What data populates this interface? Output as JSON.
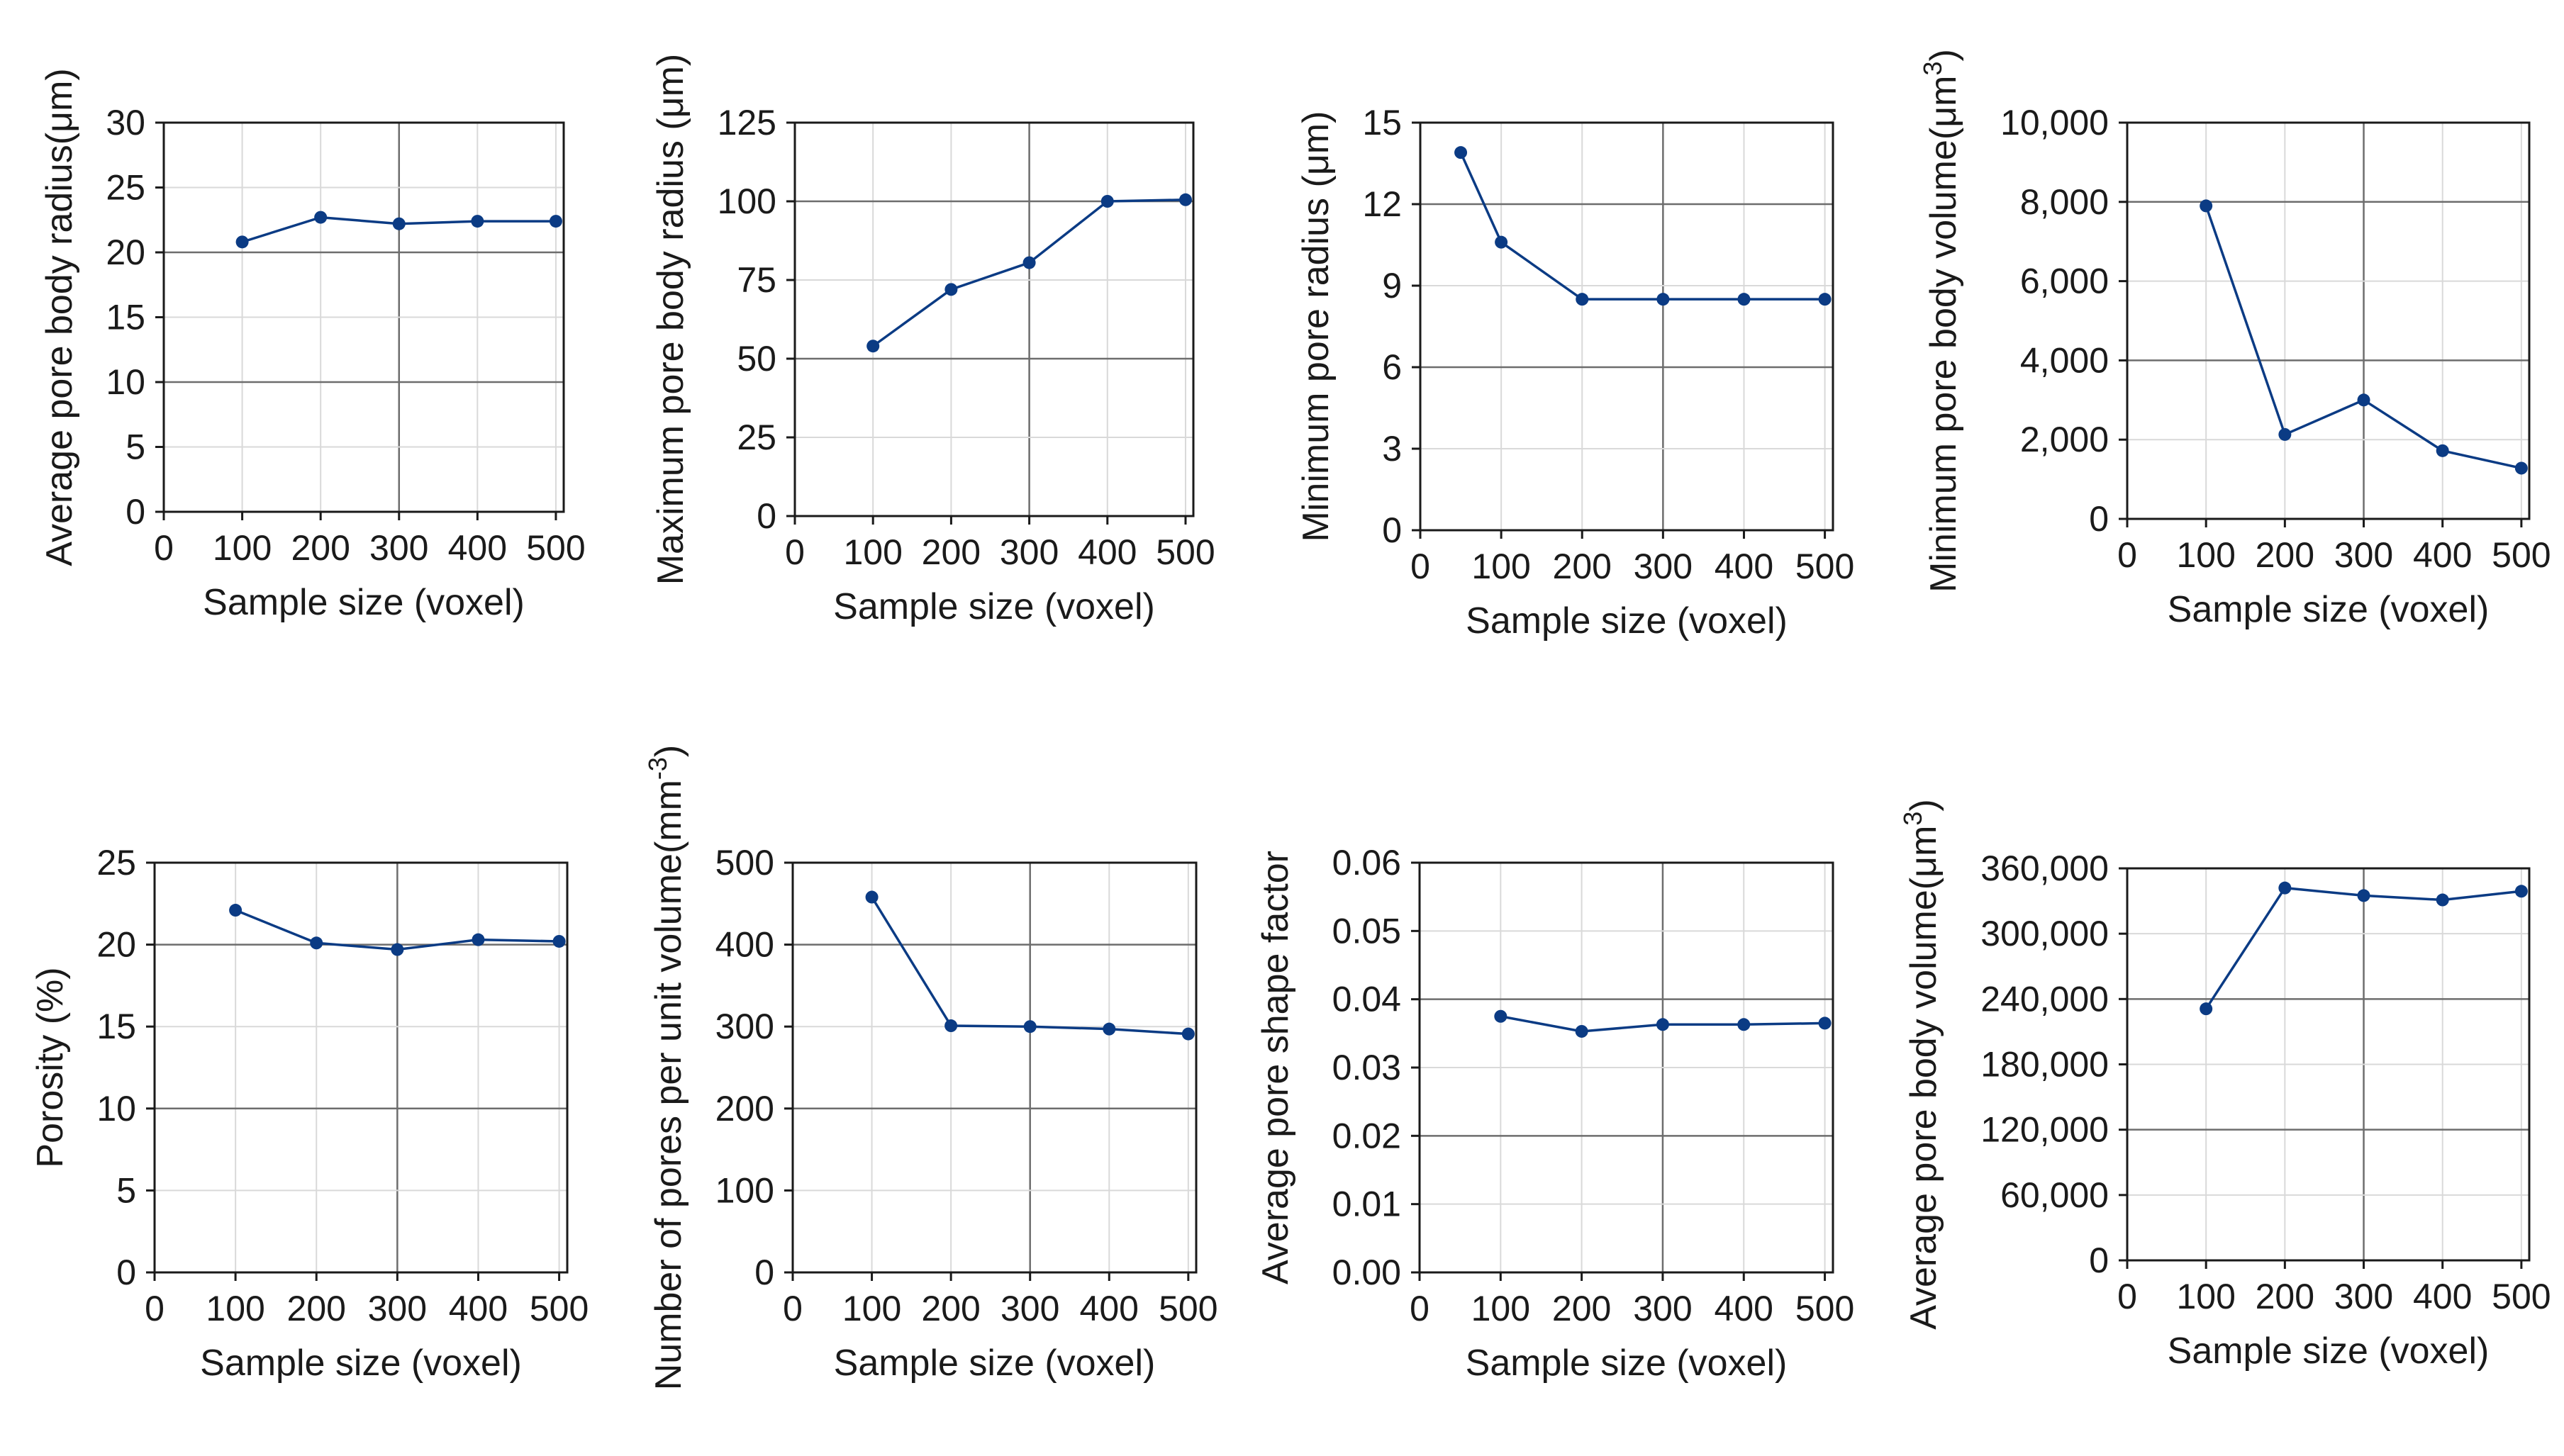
{
  "figure": {
    "description_free": true
  },
  "chart_data": [
    {
      "id": "avg-pore-body-radius",
      "type": "line",
      "title": "",
      "xlabel": "Sample size (voxel)",
      "ylabel": "Average pore body radius(μm)",
      "ylabel_sup": "",
      "ylabel_tail": "",
      "xlim": [
        0,
        510
      ],
      "ylim": [
        0,
        30
      ],
      "xticks": [
        0,
        100,
        200,
        300,
        400,
        500
      ],
      "xtick_labels": [
        "0",
        "100",
        "200",
        "300",
        "400",
        "500"
      ],
      "yticks": [
        0,
        5,
        10,
        15,
        20,
        25,
        30
      ],
      "ytick_labels": [
        "0",
        "5",
        "10",
        "15",
        "20",
        "25",
        "30"
      ],
      "series": [
        {
          "name": "Average pore body radius",
          "color": "#0b3b84",
          "x": [
            100,
            200,
            300,
            400,
            500
          ],
          "y": [
            20.8,
            22.7,
            22.2,
            22.4,
            22.4
          ]
        }
      ]
    },
    {
      "id": "max-pore-body-radius",
      "type": "line",
      "title": "",
      "xlabel": "Sample size (voxel)",
      "ylabel": "Maximum pore body radius (μm)",
      "ylabel_sup": "",
      "ylabel_tail": "",
      "xlim": [
        0,
        510
      ],
      "ylim": [
        0,
        125
      ],
      "xticks": [
        0,
        100,
        200,
        300,
        400,
        500
      ],
      "xtick_labels": [
        "0",
        "100",
        "200",
        "300",
        "400",
        "500"
      ],
      "yticks": [
        0,
        25,
        50,
        75,
        100,
        125
      ],
      "ytick_labels": [
        "0",
        "25",
        "50",
        "75",
        "100",
        "125"
      ],
      "series": [
        {
          "name": "Maximum pore body radius",
          "color": "#0b3b84",
          "x": [
            100,
            200,
            300,
            400,
            500
          ],
          "y": [
            54,
            72,
            80.5,
            100,
            100.5
          ]
        }
      ]
    },
    {
      "id": "min-pore-radius",
      "type": "line",
      "title": "",
      "xlabel": "Sample size (voxel)",
      "ylabel": "Minimum pore radius (μm)",
      "ylabel_sup": "",
      "ylabel_tail": "",
      "xlim": [
        0,
        510
      ],
      "ylim": [
        0,
        15
      ],
      "xticks": [
        0,
        100,
        200,
        300,
        400,
        500
      ],
      "xtick_labels": [
        "0",
        "100",
        "200",
        "300",
        "400",
        "500"
      ],
      "yticks": [
        0,
        3,
        6,
        9,
        12,
        15
      ],
      "ytick_labels": [
        "0",
        "3",
        "6",
        "9",
        "12",
        "15"
      ],
      "series": [
        {
          "name": "Minimum pore radius",
          "color": "#0b3b84",
          "x": [
            50,
            100,
            200,
            300,
            400,
            500
          ],
          "y": [
            13.9,
            10.6,
            8.5,
            8.5,
            8.5,
            8.5
          ]
        }
      ]
    },
    {
      "id": "min-pore-body-volume",
      "type": "line",
      "title": "",
      "xlabel": "Sample size (voxel)",
      "ylabel": "Minimum pore body volume(μm",
      "ylabel_sup": "3",
      "ylabel_tail": ")",
      "xlim": [
        0,
        510
      ],
      "ylim": [
        0,
        10000
      ],
      "xticks": [
        0,
        100,
        200,
        300,
        400,
        500
      ],
      "xtick_labels": [
        "0",
        "100",
        "200",
        "300",
        "400",
        "500"
      ],
      "yticks": [
        0,
        2000,
        4000,
        6000,
        8000,
        10000
      ],
      "ytick_labels": [
        "0",
        "2,000",
        "4,000",
        "6,000",
        "8,000",
        "10,000"
      ],
      "series": [
        {
          "name": "Minimum pore body volume",
          "color": "#0b3b84",
          "x": [
            100,
            200,
            300,
            400,
            500
          ],
          "y": [
            7900,
            2130,
            3000,
            1720,
            1280
          ]
        }
      ]
    },
    {
      "id": "porosity",
      "type": "line",
      "title": "",
      "xlabel": "Sample size (voxel)",
      "ylabel": "Porosity (%)",
      "ylabel_sup": "",
      "ylabel_tail": "",
      "xlim": [
        0,
        510
      ],
      "ylim": [
        0,
        25
      ],
      "xticks": [
        0,
        100,
        200,
        300,
        400,
        500
      ],
      "xtick_labels": [
        "0",
        "100",
        "200",
        "300",
        "400",
        "500"
      ],
      "yticks": [
        0,
        5,
        10,
        15,
        20,
        25
      ],
      "ytick_labels": [
        "0",
        "5",
        "10",
        "15",
        "20",
        "25"
      ],
      "series": [
        {
          "name": "Porosity",
          "color": "#0b3b84",
          "x": [
            100,
            200,
            300,
            400,
            500
          ],
          "y": [
            22.1,
            20.1,
            19.7,
            20.3,
            20.2
          ]
        }
      ]
    },
    {
      "id": "pores-per-unit-volume",
      "type": "line",
      "title": "",
      "xlabel": "Sample size (voxel)",
      "ylabel": "Number of pores per unit volume(mm",
      "ylabel_sup": "-3",
      "ylabel_tail": ")",
      "xlim": [
        0,
        510
      ],
      "ylim": [
        0,
        500
      ],
      "xticks": [
        0,
        100,
        200,
        300,
        400,
        500
      ],
      "xtick_labels": [
        "0",
        "100",
        "200",
        "300",
        "400",
        "500"
      ],
      "yticks": [
        0,
        100,
        200,
        300,
        400,
        500
      ],
      "ytick_labels": [
        "0",
        "100",
        "200",
        "300",
        "400",
        "500"
      ],
      "series": [
        {
          "name": "Number of pores per unit volume",
          "color": "#0b3b84",
          "x": [
            100,
            200,
            300,
            400,
            500
          ],
          "y": [
            458,
            301,
            300,
            297,
            291
          ]
        }
      ]
    },
    {
      "id": "avg-pore-shape-factor",
      "type": "line",
      "title": "",
      "xlabel": "Sample size (voxel)",
      "ylabel": "Average pore shape factor",
      "ylabel_sup": "",
      "ylabel_tail": "",
      "xlim": [
        0,
        510
      ],
      "ylim": [
        0,
        0.06
      ],
      "xticks": [
        0,
        100,
        200,
        300,
        400,
        500
      ],
      "xtick_labels": [
        "0",
        "100",
        "200",
        "300",
        "400",
        "500"
      ],
      "yticks": [
        0,
        0.01,
        0.02,
        0.03,
        0.04,
        0.05,
        0.06
      ],
      "ytick_labels": [
        "0.00",
        "0.01",
        "0.02",
        "0.03",
        "0.04",
        "0.05",
        "0.06"
      ],
      "series": [
        {
          "name": "Average pore shape factor",
          "color": "#0b3b84",
          "x": [
            100,
            200,
            300,
            400,
            500
          ],
          "y": [
            0.0375,
            0.0353,
            0.0363,
            0.0363,
            0.0365
          ]
        }
      ]
    },
    {
      "id": "avg-pore-body-volume",
      "type": "line",
      "title": "",
      "xlabel": "Sample size (voxel)",
      "ylabel": "Average pore body volume(μm",
      "ylabel_sup": "3",
      "ylabel_tail": ")",
      "xlim": [
        0,
        510
      ],
      "ylim": [
        0,
        360000
      ],
      "xticks": [
        0,
        100,
        200,
        300,
        400,
        500
      ],
      "xtick_labels": [
        "0",
        "100",
        "200",
        "300",
        "400",
        "500"
      ],
      "yticks": [
        0,
        60000,
        120000,
        180000,
        240000,
        300000,
        360000
      ],
      "ytick_labels": [
        "0",
        "60,000",
        "120,000",
        "180,000",
        "240,000",
        "300,000",
        "360,000"
      ],
      "series": [
        {
          "name": "Average pore body volume",
          "color": "#0b3b84",
          "x": [
            100,
            200,
            300,
            400,
            500
          ],
          "y": [
            231000,
            342000,
            335000,
            331000,
            339000
          ]
        }
      ]
    }
  ]
}
